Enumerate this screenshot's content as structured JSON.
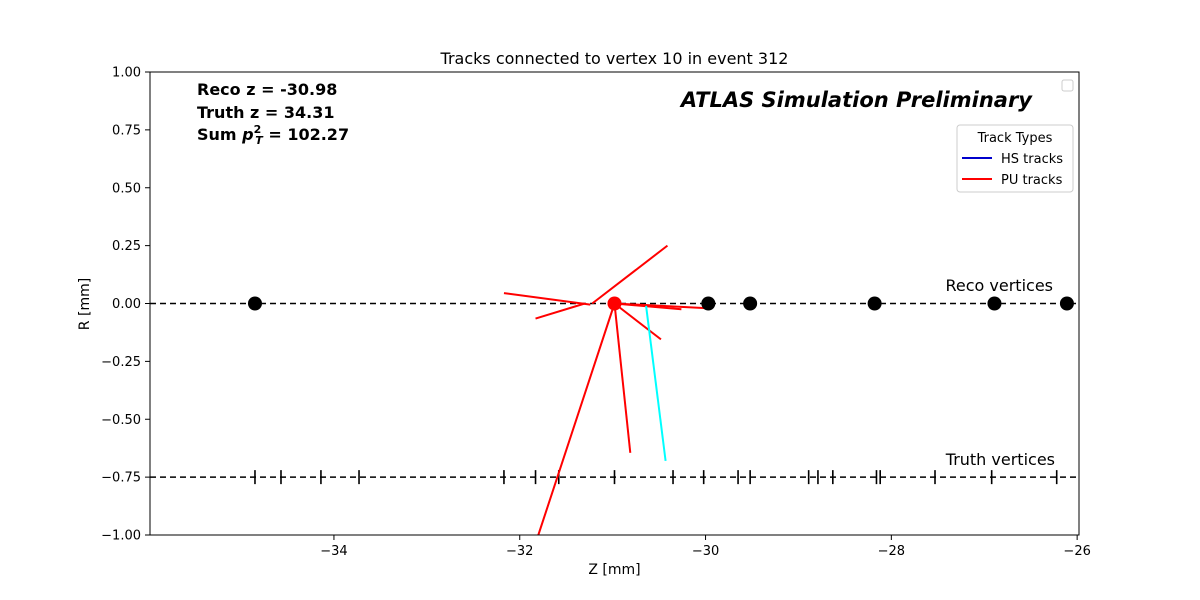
{
  "chart_data": {
    "type": "line",
    "title": "Tracks connected to vertex 10 in event 312",
    "xlabel": "Z [mm]",
    "ylabel": "R [mm]",
    "xlim": [
      -35.98,
      -25.98
    ],
    "ylim": [
      -1.0,
      1.0
    ],
    "x_ticks": [
      -34,
      -32,
      -30,
      -28,
      -26
    ],
    "x_tick_labels": [
      "−34",
      "−32",
      "−30",
      "−28",
      "−26"
    ],
    "y_ticks": [
      1.0,
      0.75,
      0.5,
      0.25,
      0.0,
      -0.25,
      -0.5,
      -0.75,
      -1.0
    ],
    "y_tick_labels": [
      "1.00",
      "0.75",
      "0.50",
      "0.25",
      "0.00",
      "−0.25",
      "−0.50",
      "−0.75",
      "−1.00"
    ],
    "grid": false,
    "annotations": {
      "reco_z": "Reco z = -30.98",
      "truth_z": "Truth z = 34.31",
      "sum_pt_prefix": "Sum ",
      "sum_pt_value": " = 102.27",
      "atlas_label": "ATLAS Simulation Preliminary",
      "reco_vertices_label": "Reco vertices",
      "truth_vertices_label": "Truth vertices"
    },
    "legend": {
      "title": "Track Types",
      "placement": "upper-right",
      "entries": [
        {
          "label": "HS tracks",
          "color": "#0000cc"
        },
        {
          "label": "PU tracks",
          "color": "#ff0000"
        }
      ]
    },
    "reco_line_r": 0.0,
    "truth_line_r": -0.75,
    "reco_vertices": [
      {
        "z": -34.85,
        "r": 0.0,
        "color": "#000000"
      },
      {
        "z": -30.98,
        "r": 0.0,
        "color": "#ff0000"
      },
      {
        "z": -29.97,
        "r": 0.0,
        "color": "#000000"
      },
      {
        "z": -29.52,
        "r": 0.0,
        "color": "#000000"
      },
      {
        "z": -28.18,
        "r": 0.0,
        "color": "#000000"
      },
      {
        "z": -26.89,
        "r": 0.0,
        "color": "#000000"
      },
      {
        "z": -26.11,
        "r": 0.0,
        "color": "#000000"
      }
    ],
    "truth_vertices_z": [
      -34.85,
      -34.57,
      -34.14,
      -33.73,
      -32.17,
      -31.83,
      -31.58,
      -30.98,
      -30.35,
      -30.02,
      -29.65,
      -29.52,
      -28.89,
      -28.79,
      -28.63,
      -28.16,
      -28.12,
      -27.53,
      -26.92,
      -26.22
    ],
    "tracks": [
      {
        "type": "PU",
        "color": "#ff0000",
        "z": [
          -32.17,
          -31.24
        ],
        "r": [
          0.045,
          -0.005
        ]
      },
      {
        "type": "PU",
        "color": "#ff0000",
        "z": [
          -31.83,
          -31.3
        ],
        "r": [
          -0.065,
          0.0
        ]
      },
      {
        "type": "PU",
        "color": "#ff0000",
        "z": [
          -31.22,
          -30.41
        ],
        "r": [
          0.0,
          0.25
        ]
      },
      {
        "type": "PU",
        "color": "#ff0000",
        "z": [
          -30.98,
          -30.26
        ],
        "r": [
          0.0,
          -0.025
        ]
      },
      {
        "type": "PU",
        "color": "#ff0000",
        "z": [
          -30.98,
          -30.0
        ],
        "r": [
          0.0,
          -0.02
        ]
      },
      {
        "type": "PU",
        "color": "#ff0000",
        "z": [
          -30.98,
          -30.48
        ],
        "r": [
          0.0,
          -0.155
        ]
      },
      {
        "type": "PU",
        "color": "#ff0000",
        "z": [
          -30.98,
          -30.81
        ],
        "r": [
          0.0,
          -0.645
        ]
      },
      {
        "type": "PU",
        "color": "#ff0000",
        "z": [
          -30.98,
          -31.8
        ],
        "r": [
          0.0,
          -1.0
        ]
      },
      {
        "type": "PU",
        "color": "#00ffff",
        "z": [
          -30.64,
          -30.43
        ],
        "r": [
          -0.01,
          -0.68
        ]
      }
    ]
  }
}
